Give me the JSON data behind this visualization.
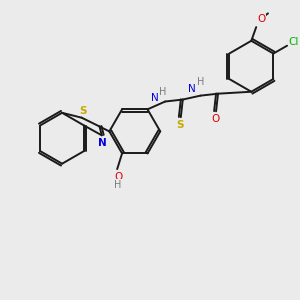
{
  "background_color": "#ebebeb",
  "bond_color": "#1a1a1a",
  "atom_colors": {
    "S": "#c8a800",
    "N": "#0000e0",
    "O": "#e00000",
    "Cl": "#00b000",
    "H": "#7a7a7a",
    "C": "#1a1a1a"
  },
  "figsize": [
    3.0,
    3.0
  ],
  "dpi": 100
}
